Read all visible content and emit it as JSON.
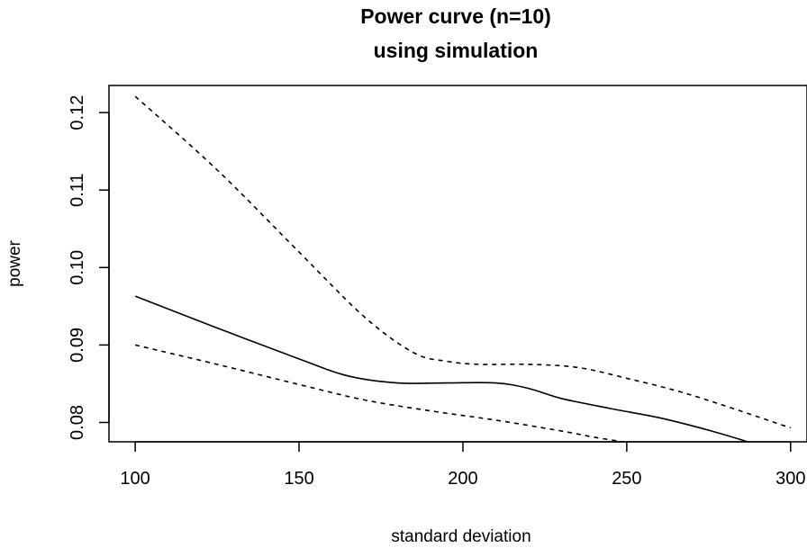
{
  "chart_data": {
    "type": "line",
    "title_line1": "Power curve (n=10)",
    "title_line2": "using simulation",
    "xlabel": "standard deviation",
    "ylabel": "power",
    "xlim": [
      92,
      305
    ],
    "ylim": [
      0.0775,
      0.1235
    ],
    "x_ticks": [
      100,
      150,
      200,
      250,
      300
    ],
    "x_tick_labels": [
      "100",
      "150",
      "200",
      "250",
      "300"
    ],
    "y_ticks": [
      0.08,
      0.09,
      0.1,
      0.11,
      0.12
    ],
    "y_tick_labels": [
      "0.08",
      "0.09",
      "0.10",
      "0.11",
      "0.12"
    ],
    "grid": false,
    "legend": "none",
    "series": [
      {
        "style": "solid",
        "x": [
          100,
          125,
          150,
          165,
          180,
          195,
          210,
          220,
          230,
          245,
          260,
          275,
          287
        ],
        "y": [
          0.0963,
          0.0922,
          0.0882,
          0.086,
          0.0851,
          0.0851,
          0.0851,
          0.0844,
          0.0831,
          0.0818,
          0.0806,
          0.079,
          0.0775
        ]
      },
      {
        "style": "dashed",
        "x": [
          100,
          125,
          150,
          170,
          185,
          195,
          205,
          220,
          235,
          250,
          270,
          300
        ],
        "y": [
          0.1221,
          0.1126,
          0.102,
          0.0936,
          0.089,
          0.0879,
          0.0875,
          0.0875,
          0.0871,
          0.0857,
          0.0835,
          0.0793
        ]
      },
      {
        "style": "dashed",
        "x": [
          100,
          125,
          150,
          170,
          190,
          210,
          230,
          240,
          249
        ],
        "y": [
          0.09,
          0.0875,
          0.0849,
          0.0829,
          0.0815,
          0.0803,
          0.0789,
          0.0781,
          0.0775
        ]
      }
    ]
  }
}
